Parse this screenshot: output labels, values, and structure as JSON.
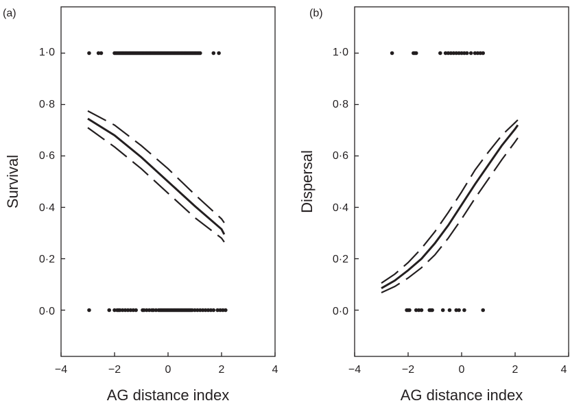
{
  "chart_data": [
    {
      "type": "scatter",
      "panel_label": "(a)",
      "xlabel": "AG distance index",
      "ylabel": "Survival",
      "xlim": [
        -4,
        4
      ],
      "ylim": [
        -0.18,
        1.18
      ],
      "xticks": [
        -4,
        -2,
        0,
        2,
        4
      ],
      "xtick_labels": [
        "−4",
        "−2",
        "0",
        "2",
        "4"
      ],
      "yticks": [
        0,
        0.2,
        0.4,
        0.6,
        0.8,
        1
      ],
      "ytick_labels": [
        "0·0",
        "0·2",
        "0·4",
        "0·6",
        "0·8",
        "1·0"
      ],
      "grid": false,
      "points_y1": [
        -2.95,
        -2.6,
        -2.5,
        -2.0,
        -1.95,
        -1.9,
        -1.85,
        -1.8,
        -1.75,
        -1.7,
        -1.65,
        -1.6,
        -1.55,
        -1.5,
        -1.45,
        -1.4,
        -1.35,
        -1.3,
        -1.25,
        -1.2,
        -1.15,
        -1.1,
        -1.05,
        -1.0,
        -0.95,
        -0.9,
        -0.85,
        -0.8,
        -0.75,
        -0.7,
        -0.65,
        -0.6,
        -0.55,
        -0.5,
        -0.45,
        -0.4,
        -0.35,
        -0.3,
        -0.25,
        -0.2,
        -0.15,
        -0.1,
        -0.05,
        0.0,
        0.05,
        0.1,
        0.15,
        0.2,
        0.25,
        0.3,
        0.35,
        0.4,
        0.45,
        0.5,
        0.55,
        0.6,
        0.65,
        0.7,
        0.75,
        0.8,
        0.85,
        0.9,
        0.95,
        1.0,
        1.05,
        1.1,
        1.15,
        1.2,
        1.7,
        1.9
      ],
      "points_y0": [
        -2.95,
        -2.2,
        -2.0,
        -1.9,
        -1.85,
        -1.8,
        -1.7,
        -1.6,
        -1.5,
        -1.4,
        -1.3,
        -1.2,
        -0.95,
        -0.9,
        -0.8,
        -0.7,
        -0.6,
        -0.55,
        -0.45,
        -0.35,
        -0.3,
        -0.25,
        -0.2,
        -0.15,
        -0.1,
        -0.05,
        0.0,
        0.05,
        0.1,
        0.15,
        0.2,
        0.25,
        0.3,
        0.35,
        0.4,
        0.45,
        0.5,
        0.55,
        0.6,
        0.65,
        0.7,
        0.75,
        0.8,
        0.85,
        0.9,
        1.0,
        1.1,
        1.2,
        1.3,
        1.4,
        1.5,
        1.6,
        1.7,
        1.85,
        1.95,
        2.05,
        2.15
      ],
      "fit": {
        "x": [
          -3,
          -2,
          -1,
          0,
          1,
          2,
          2.1
        ],
        "y": [
          0.745,
          0.68,
          0.595,
          0.5,
          0.405,
          0.315,
          0.295
        ]
      },
      "ci_upper": {
        "x": [
          -3,
          -2,
          -1,
          0,
          1,
          2,
          2.1
        ],
        "y": [
          0.775,
          0.72,
          0.64,
          0.55,
          0.45,
          0.355,
          0.34
        ]
      },
      "ci_lower": {
        "x": [
          -3,
          -2,
          -1,
          0,
          1,
          2,
          2.1
        ],
        "y": [
          0.71,
          0.635,
          0.55,
          0.455,
          0.36,
          0.28,
          0.265
        ]
      }
    },
    {
      "type": "scatter",
      "panel_label": "(b)",
      "xlabel": "AG distance index",
      "ylabel": "Dispersal",
      "xlim": [
        -4,
        4
      ],
      "ylim": [
        -0.18,
        1.18
      ],
      "xticks": [
        -4,
        -2,
        0,
        2,
        4
      ],
      "xtick_labels": [
        "−4",
        "−2",
        "0",
        "2",
        "4"
      ],
      "yticks": [
        0,
        0.2,
        0.4,
        0.6,
        0.8,
        1
      ],
      "ytick_labels": [
        "0·0",
        "0·2",
        "0·4",
        "0·6",
        "0·8",
        "1·0"
      ],
      "grid": false,
      "points_y1": [
        -2.6,
        -1.8,
        -1.75,
        -1.7,
        -0.8,
        -0.6,
        -0.5,
        -0.4,
        -0.3,
        -0.2,
        -0.1,
        0.0,
        0.1,
        0.2,
        0.35,
        0.5,
        0.6,
        0.7,
        0.8
      ],
      "points_y0": [
        -2.05,
        -2.0,
        -1.95,
        -1.7,
        -1.6,
        -1.5,
        -1.2,
        -1.15,
        -1.1,
        -0.7,
        -0.45,
        -0.2,
        -0.1,
        0.1,
        0.8
      ],
      "fit": {
        "x": [
          -3,
          -2.5,
          -2,
          -1.5,
          -1,
          -0.5,
          0,
          0.5,
          1,
          1.5,
          2,
          2.1
        ],
        "y": [
          0.085,
          0.115,
          0.155,
          0.2,
          0.26,
          0.33,
          0.41,
          0.49,
          0.565,
          0.64,
          0.705,
          0.72
        ]
      },
      "ci_upper": {
        "x": [
          -3,
          -2.5,
          -2,
          -1.5,
          -1,
          -0.5,
          0,
          0.5,
          1,
          1.5,
          2,
          2.1
        ],
        "y": [
          0.105,
          0.14,
          0.185,
          0.24,
          0.305,
          0.38,
          0.46,
          0.545,
          0.615,
          0.68,
          0.73,
          0.74
        ]
      },
      "ci_lower": {
        "x": [
          -3,
          -2.5,
          -2,
          -1.5,
          -1,
          -0.5,
          0,
          0.5,
          1,
          1.5,
          2,
          2.1
        ],
        "y": [
          0.068,
          0.092,
          0.125,
          0.165,
          0.215,
          0.28,
          0.355,
          0.435,
          0.51,
          0.585,
          0.655,
          0.67
        ]
      }
    }
  ]
}
